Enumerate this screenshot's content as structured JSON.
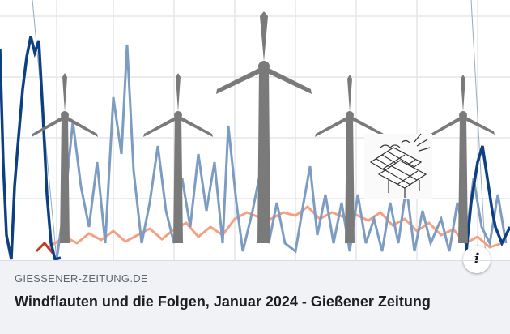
{
  "link_preview": {
    "image_alt_icons": [
      "wind-turbine-icon",
      "solar-panel-icon"
    ],
    "domain": "GIESSENER-ZEITUNG.DE",
    "title": "Windflauten und die Folgen, Januar 2024 - Gießener Zeitung",
    "info_icon": "info-icon"
  },
  "colors": {
    "series_dark_blue": "#0d3f82",
    "series_light_blue": "#7c9cc1",
    "series_orange": "#f4a083",
    "series_red": "#c43a1f",
    "turbine": "#7a7a7a",
    "meta_background": "#f0f2f5"
  }
}
